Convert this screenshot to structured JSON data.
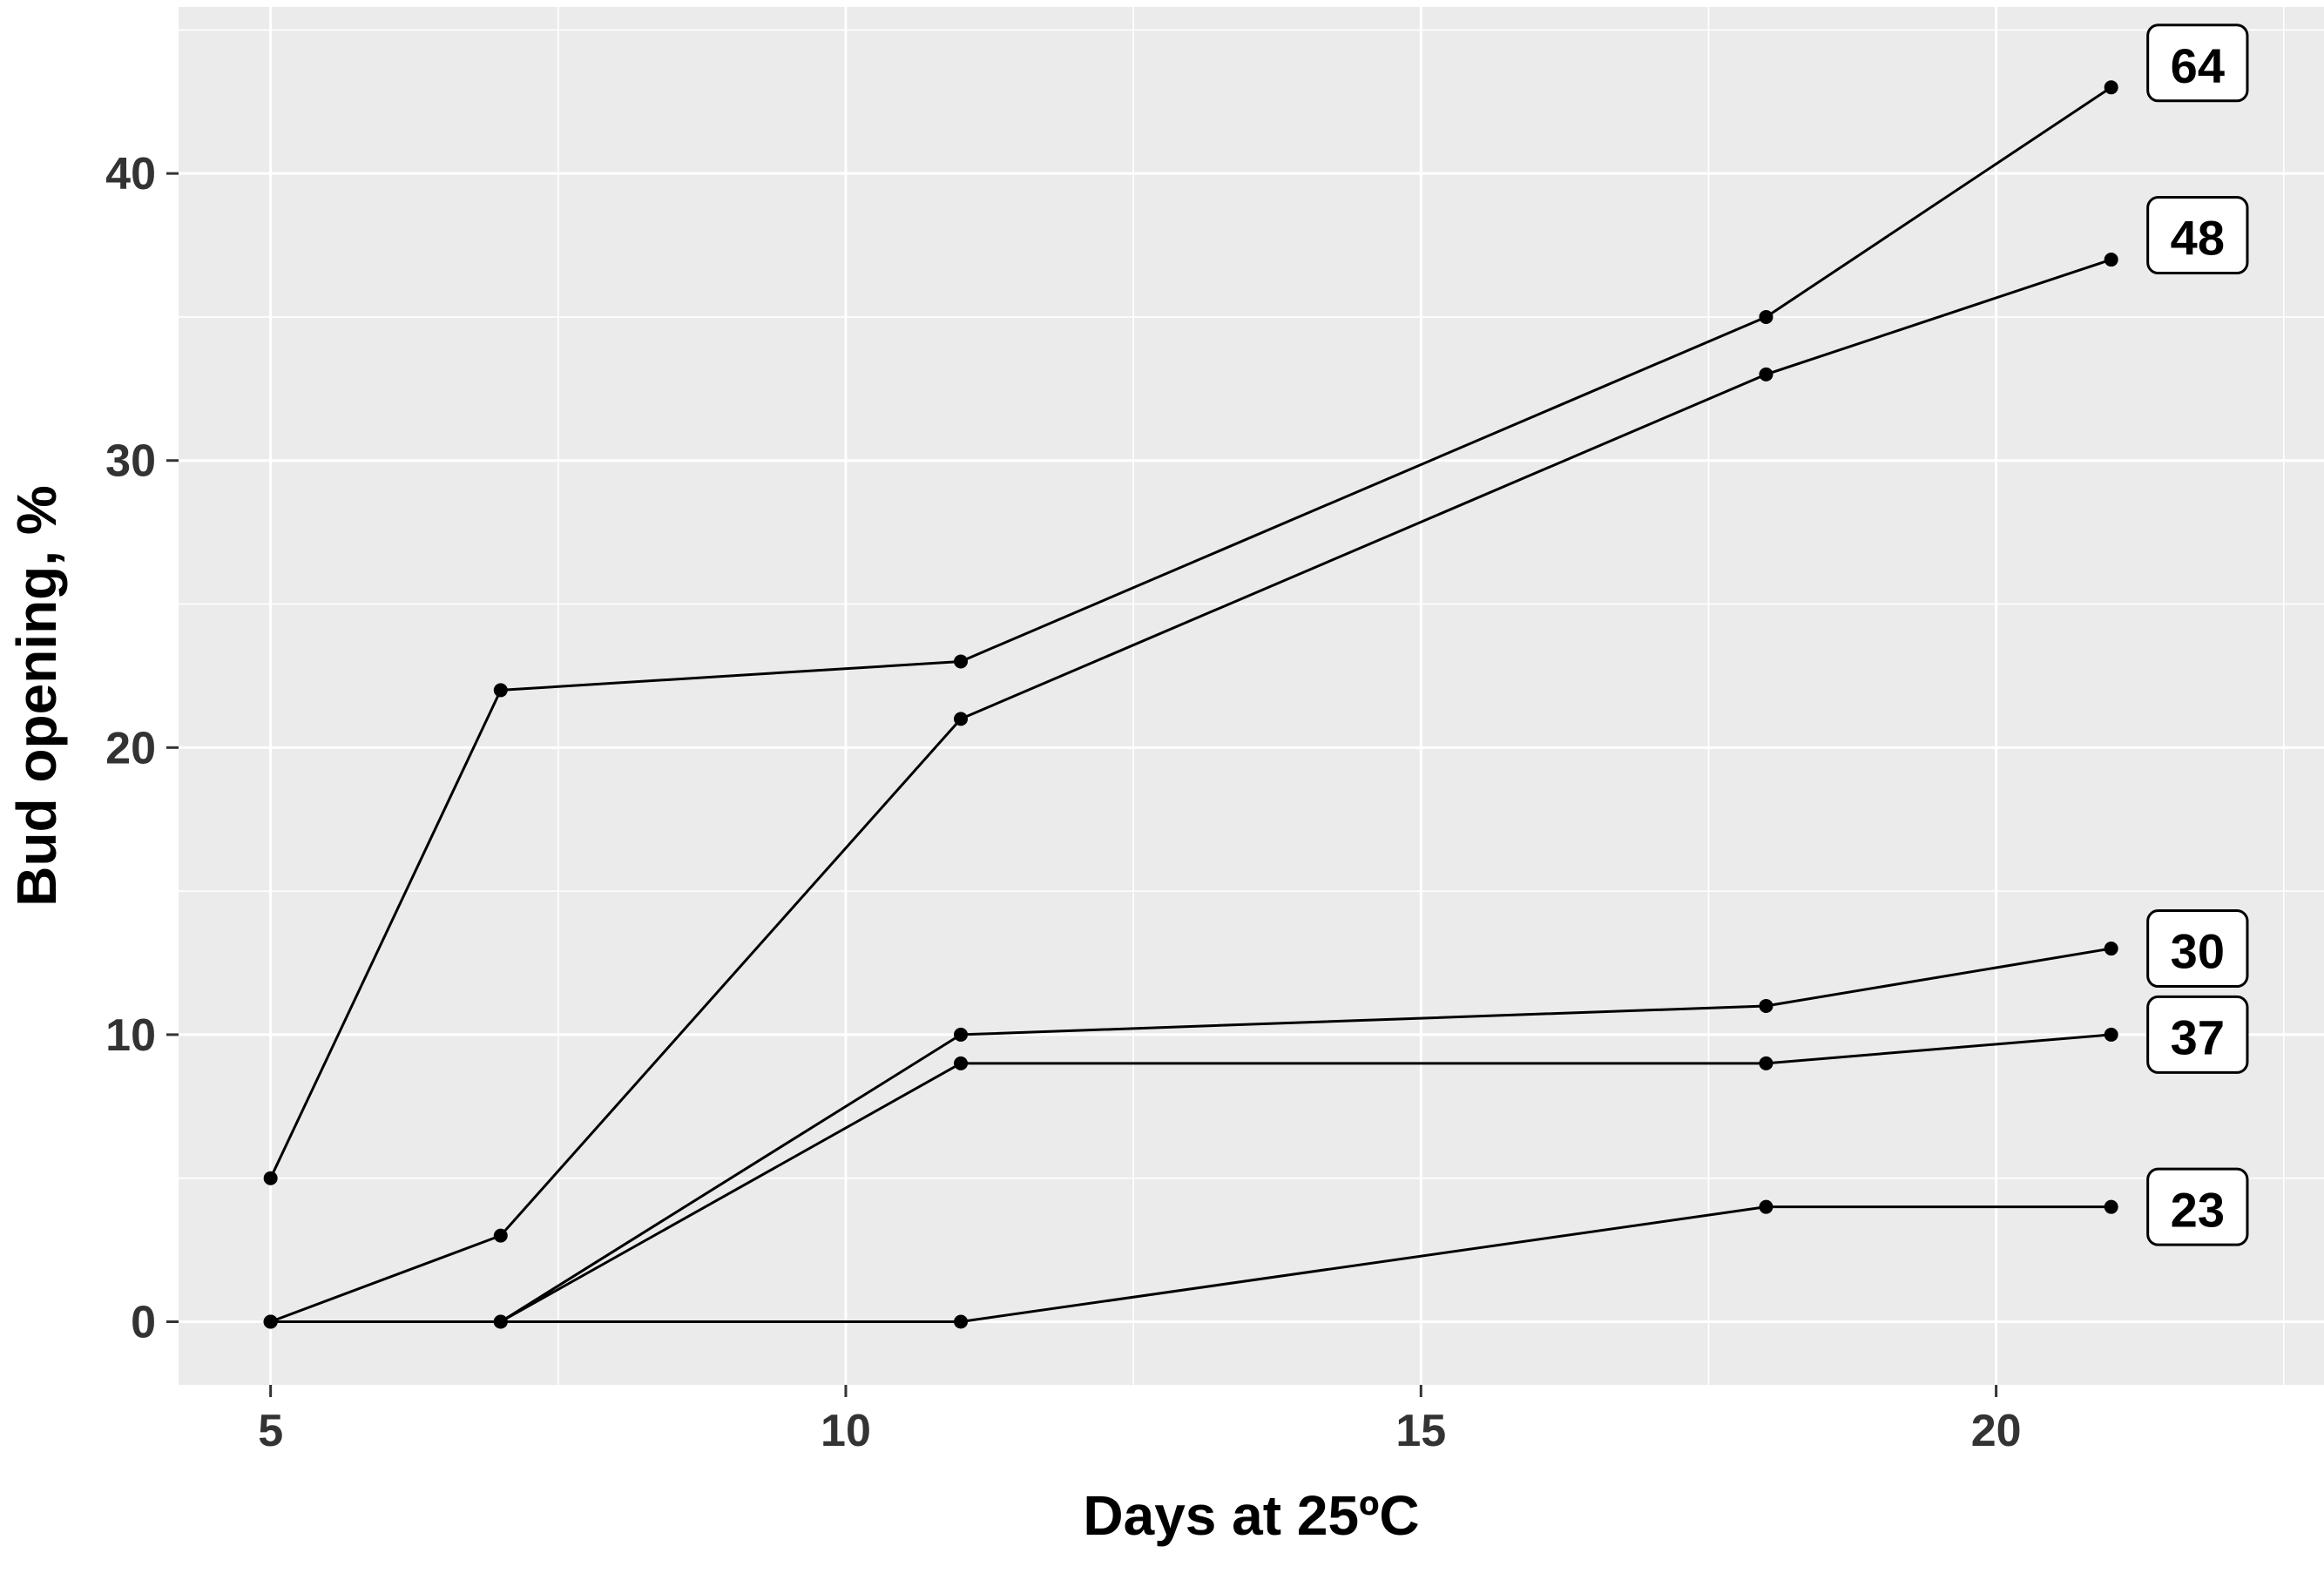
{
  "chart": {
    "panel_bg": "#EBEBEB",
    "grid_color": "#FFFFFF",
    "line_color": "#000000",
    "point_color": "#000000",
    "label_box_fill": "#FFFFFF",
    "label_box_border": "#000000",
    "axis_tick_color": "#333333",
    "axis_tick_text_color": "#333333",
    "axis_title_color": "#000000"
  },
  "chart_data": {
    "type": "line",
    "title": "",
    "xlabel": "Days at 25ºC",
    "ylabel": "Bud opening, %",
    "x_ticks": [
      5,
      10,
      15,
      20
    ],
    "y_ticks": [
      0,
      10,
      20,
      30,
      40
    ],
    "x_minor_gridlines": [
      7.5,
      12.5,
      17.5,
      22.5
    ],
    "y_minor_gridlines": [
      5,
      15,
      25,
      35,
      45
    ],
    "xlim": [
      4.2,
      22.85
    ],
    "ylim": [
      -2.2,
      45.8
    ],
    "grid": true,
    "legend_position": "end-of-line-labels",
    "x": [
      5,
      7,
      11,
      18,
      21
    ],
    "series": [
      {
        "name": "64",
        "values": [
          5,
          22,
          23,
          35,
          43
        ]
      },
      {
        "name": "48",
        "values": [
          0,
          3,
          21,
          33,
          37
        ]
      },
      {
        "name": "30",
        "values": [
          0,
          0,
          10,
          11,
          13
        ]
      },
      {
        "name": "37",
        "values": [
          0,
          0,
          9,
          9,
          10
        ]
      },
      {
        "name": "23",
        "values": [
          0,
          0,
          0,
          4,
          4
        ]
      }
    ]
  }
}
